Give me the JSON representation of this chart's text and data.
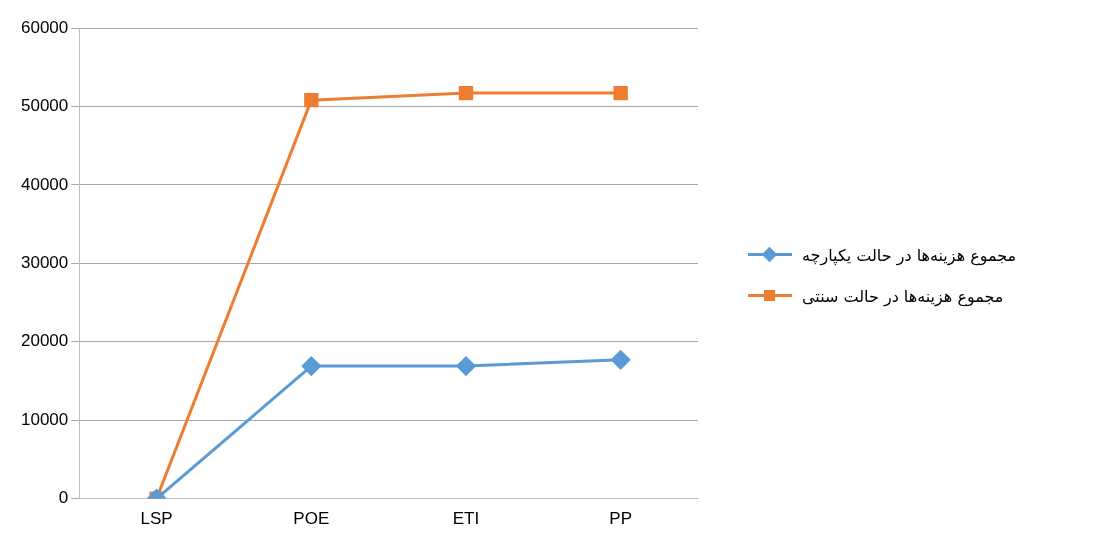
{
  "chart_data": {
    "type": "line",
    "categories": [
      "LSP",
      "POE",
      "ETI",
      "PP"
    ],
    "series": [
      {
        "name": "مجموع هزینه‌ها در حالت یکپارچه",
        "color": "#5b9bd5",
        "marker": "diamond",
        "values": [
          0,
          16900,
          16900,
          17700
        ]
      },
      {
        "name": "مجموع هزینه‌ها در حالت سنتی",
        "color": "#ed7d31",
        "marker": "square",
        "values": [
          0,
          50800,
          51700,
          51700
        ]
      }
    ],
    "ylim": [
      0,
      60000
    ],
    "yticks": [
      0,
      10000,
      20000,
      30000,
      40000,
      50000,
      60000
    ],
    "grid": "y",
    "legend": "right",
    "line_style": "solid"
  }
}
